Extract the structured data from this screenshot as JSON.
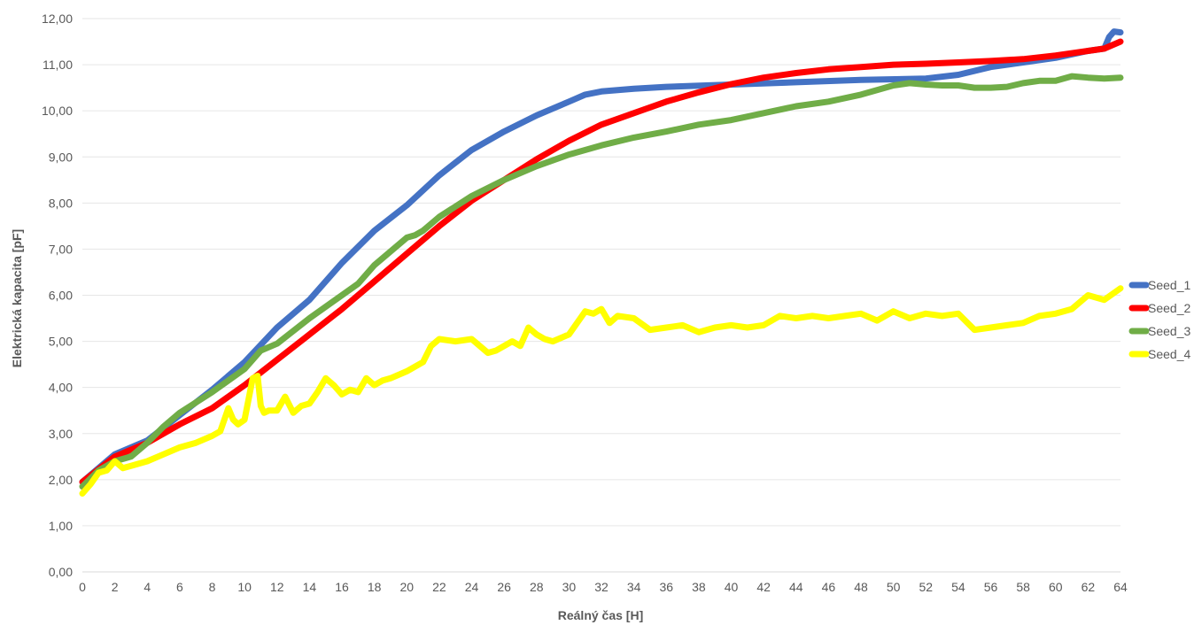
{
  "chart_data": {
    "type": "line",
    "title": "",
    "xlabel": "Reálný čas [H]",
    "ylabel": "Elektrická kapacita [pF]",
    "xlim": [
      0,
      64
    ],
    "ylim": [
      0,
      12
    ],
    "x_ticks": [
      "0",
      "2",
      "4",
      "6",
      "8",
      "10",
      "12",
      "14",
      "16",
      "18",
      "20",
      "22",
      "24",
      "26",
      "28",
      "30",
      "32",
      "34",
      "36",
      "38",
      "40",
      "42",
      "44",
      "46",
      "48",
      "50",
      "52",
      "54",
      "56",
      "58",
      "60",
      "62",
      "64"
    ],
    "y_ticks": [
      "0,00",
      "1,00",
      "2,00",
      "3,00",
      "4,00",
      "5,00",
      "6,00",
      "7,00",
      "8,00",
      "9,00",
      "10,00",
      "11,00",
      "12,00"
    ],
    "grid": "horizontal",
    "legend_position": "right",
    "series": [
      {
        "name": "Seed_1",
        "color": "#4472c4",
        "x": [
          0,
          2,
          4,
          6,
          8,
          10,
          12,
          14,
          16,
          18,
          20,
          22,
          24,
          26,
          28,
          30,
          31,
          32,
          34,
          36,
          40,
          44,
          48,
          52,
          54,
          56,
          58,
          60,
          62,
          63,
          63.3,
          63.6,
          64
        ],
        "y": [
          1.95,
          2.55,
          2.85,
          3.4,
          3.95,
          4.55,
          5.3,
          5.9,
          6.7,
          7.4,
          7.95,
          8.6,
          9.15,
          9.55,
          9.9,
          10.2,
          10.35,
          10.42,
          10.48,
          10.52,
          10.57,
          10.62,
          10.67,
          10.7,
          10.78,
          10.95,
          11.05,
          11.15,
          11.3,
          11.35,
          11.6,
          11.72,
          11.7
        ]
      },
      {
        "name": "Seed_2",
        "color": "#ff0000",
        "x": [
          0,
          2,
          4,
          6,
          8,
          10,
          12,
          14,
          16,
          18,
          20,
          22,
          24,
          26,
          28,
          30,
          32,
          34,
          36,
          38,
          40,
          42,
          44,
          46,
          48,
          50,
          52,
          54,
          56,
          58,
          60,
          62,
          63,
          64
        ],
        "y": [
          1.95,
          2.5,
          2.8,
          3.2,
          3.55,
          4.05,
          4.6,
          5.15,
          5.7,
          6.3,
          6.9,
          7.5,
          8.05,
          8.5,
          8.95,
          9.35,
          9.7,
          9.95,
          10.2,
          10.4,
          10.58,
          10.72,
          10.82,
          10.9,
          10.95,
          11.0,
          11.02,
          11.05,
          11.08,
          11.12,
          11.2,
          11.3,
          11.35,
          11.5
        ]
      },
      {
        "name": "Seed_3",
        "color": "#70ad47",
        "x": [
          0,
          1,
          2,
          3,
          4,
          5,
          6,
          8,
          10,
          11,
          12,
          14,
          16,
          17,
          18,
          20,
          20.5,
          21,
          22,
          24,
          26,
          28,
          30,
          32,
          34,
          36,
          38,
          40,
          42,
          44,
          46,
          48,
          50,
          51,
          52,
          53,
          54,
          55,
          56,
          57,
          58,
          59,
          60,
          61,
          62,
          63,
          64
        ],
        "y": [
          1.85,
          2.2,
          2.4,
          2.5,
          2.8,
          3.15,
          3.45,
          3.9,
          4.4,
          4.8,
          4.95,
          5.5,
          6.0,
          6.25,
          6.65,
          7.25,
          7.3,
          7.4,
          7.7,
          8.15,
          8.5,
          8.8,
          9.05,
          9.25,
          9.42,
          9.55,
          9.7,
          9.8,
          9.95,
          10.1,
          10.2,
          10.35,
          10.55,
          10.6,
          10.57,
          10.55,
          10.55,
          10.5,
          10.5,
          10.52,
          10.6,
          10.65,
          10.65,
          10.75,
          10.72,
          10.7,
          10.72
        ]
      },
      {
        "name": "Seed_4",
        "color": "#ffff00",
        "x": [
          0,
          0.5,
          1,
          1.5,
          2,
          2.5,
          3,
          4,
          5,
          6,
          7,
          8,
          8.5,
          9,
          9.3,
          9.6,
          10,
          10.5,
          10.8,
          11,
          11.2,
          11.5,
          12,
          12.5,
          13,
          13.5,
          14,
          14.5,
          15,
          15.5,
          16,
          16.5,
          17,
          17.5,
          18,
          18.5,
          19,
          20,
          21,
          21.5,
          22,
          23,
          24,
          25,
          25.5,
          26,
          26.5,
          27,
          27.5,
          28,
          28.5,
          29,
          30,
          31,
          31.5,
          32,
          32.5,
          33,
          34,
          35,
          36,
          37,
          38,
          39,
          40,
          41,
          42,
          43,
          44,
          45,
          46,
          47,
          48,
          49,
          50,
          51,
          52,
          53,
          54,
          55,
          56,
          57,
          58,
          59,
          60,
          61,
          62,
          63,
          64
        ],
        "y": [
          1.7,
          1.9,
          2.15,
          2.2,
          2.4,
          2.25,
          2.3,
          2.4,
          2.55,
          2.7,
          2.8,
          2.95,
          3.05,
          3.55,
          3.3,
          3.2,
          3.3,
          4.2,
          4.25,
          3.6,
          3.45,
          3.5,
          3.5,
          3.8,
          3.45,
          3.6,
          3.65,
          3.9,
          4.2,
          4.05,
          3.85,
          3.95,
          3.9,
          4.2,
          4.05,
          4.15,
          4.2,
          4.35,
          4.55,
          4.9,
          5.05,
          5.0,
          5.05,
          4.75,
          4.8,
          4.9,
          5.0,
          4.9,
          5.3,
          5.15,
          5.05,
          5.0,
          5.15,
          5.65,
          5.6,
          5.7,
          5.4,
          5.55,
          5.5,
          5.25,
          5.3,
          5.35,
          5.2,
          5.3,
          5.35,
          5.3,
          5.35,
          5.55,
          5.5,
          5.55,
          5.5,
          5.55,
          5.6,
          5.45,
          5.65,
          5.5,
          5.6,
          5.55,
          5.6,
          5.25,
          5.3,
          5.35,
          5.4,
          5.55,
          5.6,
          5.7,
          6.0,
          5.9,
          6.15
        ]
      }
    ]
  }
}
